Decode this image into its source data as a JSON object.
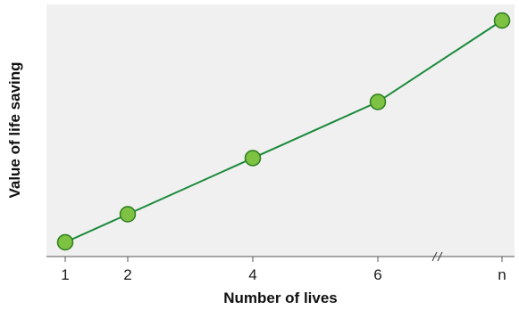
{
  "chart_data": {
    "type": "line",
    "title": "",
    "xlabel": "Number of lives",
    "ylabel": "Value of life saving",
    "x_tick_labels": [
      "1",
      "2",
      "4",
      "6",
      "n"
    ],
    "x_axis_break": true,
    "series": [
      {
        "points": [
          {
            "x": "1",
            "y": 1
          },
          {
            "x": "2",
            "y": 2
          },
          {
            "x": "4",
            "y": 4
          },
          {
            "x": "6",
            "y": 6
          },
          {
            "x": "n",
            "y": 8.9
          }
        ]
      }
    ],
    "y_ticks_shown": false,
    "grid": false,
    "colors": {
      "plot_background": "#f0f0f0",
      "line": "#1a8a3a",
      "marker_fill": "#7dc242",
      "marker_stroke": "#2e7d1e",
      "axis": "#555555"
    }
  }
}
